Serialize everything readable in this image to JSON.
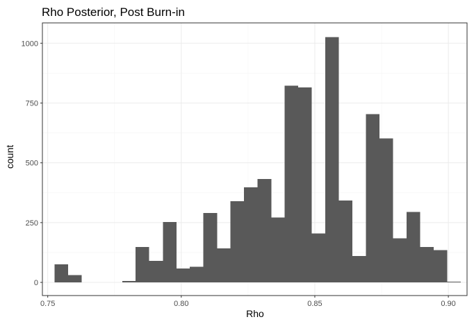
{
  "chart_data": {
    "type": "bar",
    "title": "Rho Posterior, Post Burn-in",
    "xlabel": "Rho",
    "ylabel": "count",
    "xlim": [
      0.748,
      0.907
    ],
    "ylim": [
      -55,
      1085
    ],
    "x_ticks": [
      "0.75",
      "0.80",
      "0.85",
      "0.90"
    ],
    "y_ticks": [
      "0",
      "250",
      "500",
      "750",
      "1000"
    ],
    "grid": true,
    "bin_width": 0.00507,
    "bins": [
      {
        "x0": 0.7525,
        "x1": 0.7576,
        "count": 75
      },
      {
        "x0": 0.7576,
        "x1": 0.7627,
        "count": 30
      },
      {
        "x0": 0.7627,
        "x1": 0.7677,
        "count": 0
      },
      {
        "x0": 0.7677,
        "x1": 0.7728,
        "count": 0
      },
      {
        "x0": 0.7728,
        "x1": 0.7779,
        "count": 0
      },
      {
        "x0": 0.7779,
        "x1": 0.7829,
        "count": 6
      },
      {
        "x0": 0.7829,
        "x1": 0.788,
        "count": 148
      },
      {
        "x0": 0.788,
        "x1": 0.7931,
        "count": 90
      },
      {
        "x0": 0.7931,
        "x1": 0.7982,
        "count": 252
      },
      {
        "x0": 0.7982,
        "x1": 0.8032,
        "count": 58
      },
      {
        "x0": 0.8032,
        "x1": 0.8083,
        "count": 65
      },
      {
        "x0": 0.8083,
        "x1": 0.8134,
        "count": 290
      },
      {
        "x0": 0.8134,
        "x1": 0.8184,
        "count": 142
      },
      {
        "x0": 0.8184,
        "x1": 0.8235,
        "count": 340
      },
      {
        "x0": 0.8235,
        "x1": 0.8286,
        "count": 398
      },
      {
        "x0": 0.8286,
        "x1": 0.8337,
        "count": 432
      },
      {
        "x0": 0.8337,
        "x1": 0.8387,
        "count": 272
      },
      {
        "x0": 0.8387,
        "x1": 0.8438,
        "count": 822
      },
      {
        "x0": 0.8438,
        "x1": 0.8489,
        "count": 815
      },
      {
        "x0": 0.8489,
        "x1": 0.8539,
        "count": 205
      },
      {
        "x0": 0.8539,
        "x1": 0.859,
        "count": 1025
      },
      {
        "x0": 0.859,
        "x1": 0.8641,
        "count": 342
      },
      {
        "x0": 0.8641,
        "x1": 0.8692,
        "count": 110
      },
      {
        "x0": 0.8692,
        "x1": 0.8742,
        "count": 703
      },
      {
        "x0": 0.8742,
        "x1": 0.8793,
        "count": 602
      },
      {
        "x0": 0.8793,
        "x1": 0.8844,
        "count": 185
      },
      {
        "x0": 0.8844,
        "x1": 0.8894,
        "count": 295
      },
      {
        "x0": 0.8894,
        "x1": 0.8945,
        "count": 148
      },
      {
        "x0": 0.8945,
        "x1": 0.8996,
        "count": 135
      },
      {
        "x0": 0.8996,
        "x1": 0.9047,
        "count": 3
      }
    ],
    "bar_color": "#595959",
    "panel_border_color": "#333333",
    "grid_major_color": "#ebebeb",
    "grid_minor_color": "#f5f5f5"
  }
}
